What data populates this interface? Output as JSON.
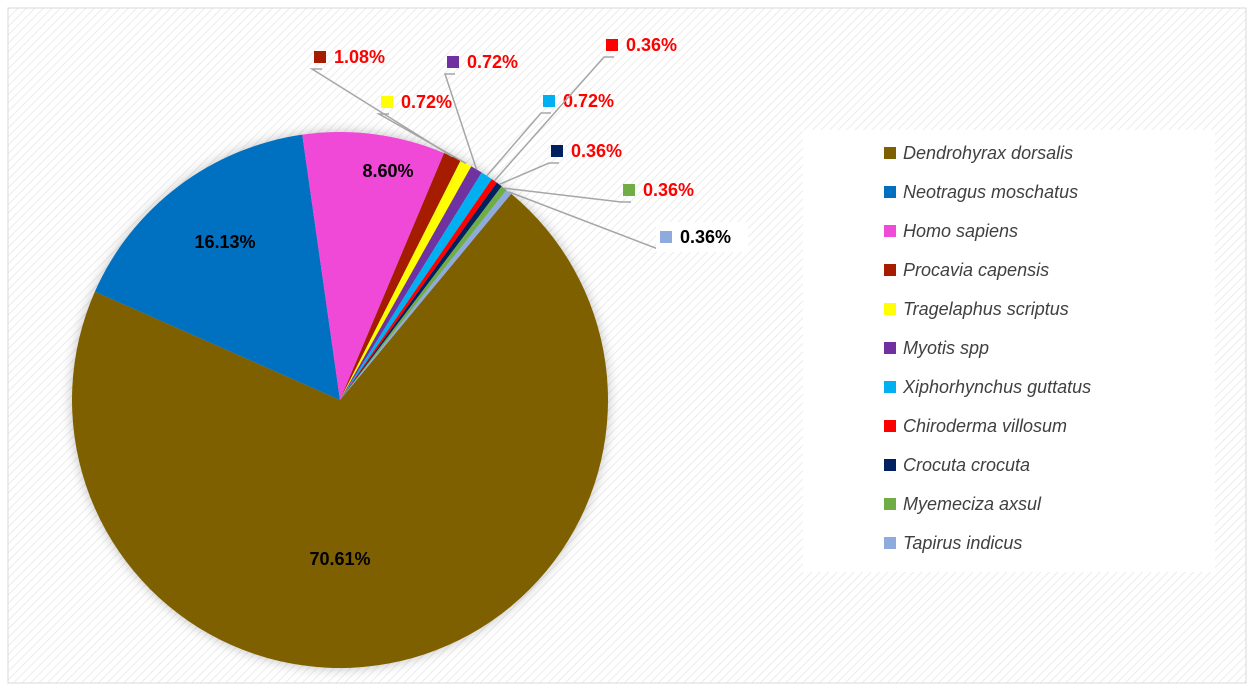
{
  "chart_data": {
    "type": "pie",
    "categories": [
      "Dendrohyrax dorsalis",
      "Neotragus moschatus",
      "Homo sapiens",
      "Procavia capensis",
      "Tragelaphus scriptus",
      "Myotis spp",
      "Xiphorhynchus guttatus",
      "Chiroderma villosum",
      "Crocuta crocuta",
      "Myemeciza axsul",
      "Tapirus indicus"
    ],
    "values": [
      70.61,
      16.13,
      8.6,
      1.08,
      0.72,
      0.72,
      0.72,
      0.36,
      0.36,
      0.36,
      0.36
    ],
    "value_labels": [
      "70.61%",
      "16.13%",
      "8.60%",
      "1.08%",
      "0.72%",
      "0.72%",
      "0.72%",
      "0.36%",
      "0.36%",
      "0.36%",
      "0.36%"
    ],
    "colors": [
      "#7f6000",
      "#0070c0",
      "#f04ad8",
      "#a61c00",
      "#ffff00",
      "#7030a0",
      "#00b0f0",
      "#ff0000",
      "#002060",
      "#70ad47",
      "#8faadc"
    ],
    "label_colors": [
      "#000000",
      "#000000",
      "#000000",
      "#ff0000",
      "#ff0000",
      "#ff0000",
      "#ff0000",
      "#ff0000",
      "#ff0000",
      "#ff0000",
      "#000000"
    ],
    "legend": "right"
  }
}
